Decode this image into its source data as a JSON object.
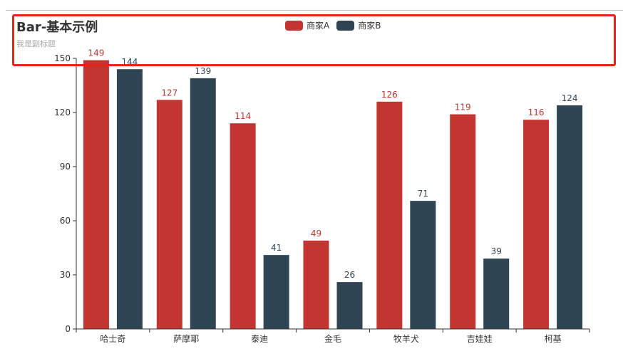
{
  "title": "Bar-基本示例",
  "subtitle": "我是副标题",
  "legend": [
    {
      "label": "商家A",
      "color": "#c23531"
    },
    {
      "label": "商家B",
      "color": "#2f4554"
    }
  ],
  "colors": {
    "seriesA": "#c23531",
    "seriesB": "#2f4554",
    "axis": "#333333",
    "highlight": "#e8231b"
  },
  "chart_data": {
    "type": "bar",
    "title": "Bar-基本示例",
    "subtitle": "我是副标题",
    "categories": [
      "哈士奇",
      "萨摩耶",
      "泰迪",
      "金毛",
      "牧羊犬",
      "吉娃娃",
      "柯基"
    ],
    "series": [
      {
        "name": "商家A",
        "values": [
          149,
          127,
          114,
          49,
          126,
          119,
          116
        ]
      },
      {
        "name": "商家B",
        "values": [
          144,
          139,
          41,
          26,
          71,
          39,
          124
        ]
      }
    ],
    "xlabel": "",
    "ylabel": "",
    "ylim": [
      0,
      150
    ],
    "yticks": [
      0,
      30,
      60,
      90,
      120,
      150
    ],
    "grid": false,
    "legend_position": "top-center",
    "data_labels": true
  }
}
